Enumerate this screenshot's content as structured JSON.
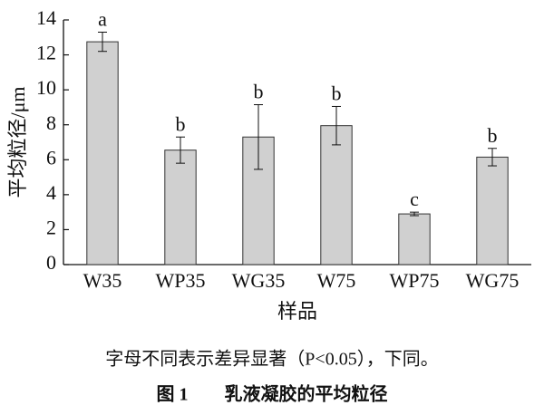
{
  "chart_data": {
    "type": "bar",
    "categories": [
      "W35",
      "WP35",
      "WG35",
      "W75",
      "WP75",
      "WG75"
    ],
    "values": [
      12.75,
      6.55,
      7.3,
      7.95,
      2.9,
      6.15
    ],
    "errors": [
      0.55,
      0.75,
      1.85,
      1.1,
      0.1,
      0.5
    ],
    "annotations": [
      "a",
      "b",
      "b",
      "b",
      "c",
      "b"
    ],
    "color": "#d0d0d0",
    "ylim": [
      0,
      14
    ],
    "yticks": [
      0,
      2,
      4,
      6,
      8,
      10,
      12,
      14
    ],
    "ylabel": "平均粒径/μm",
    "xlabel": "样品",
    "note": "字母不同表示差异显著（P<0.05），下同。",
    "caption": "图 1　　乳液凝胶的平均粒径"
  }
}
